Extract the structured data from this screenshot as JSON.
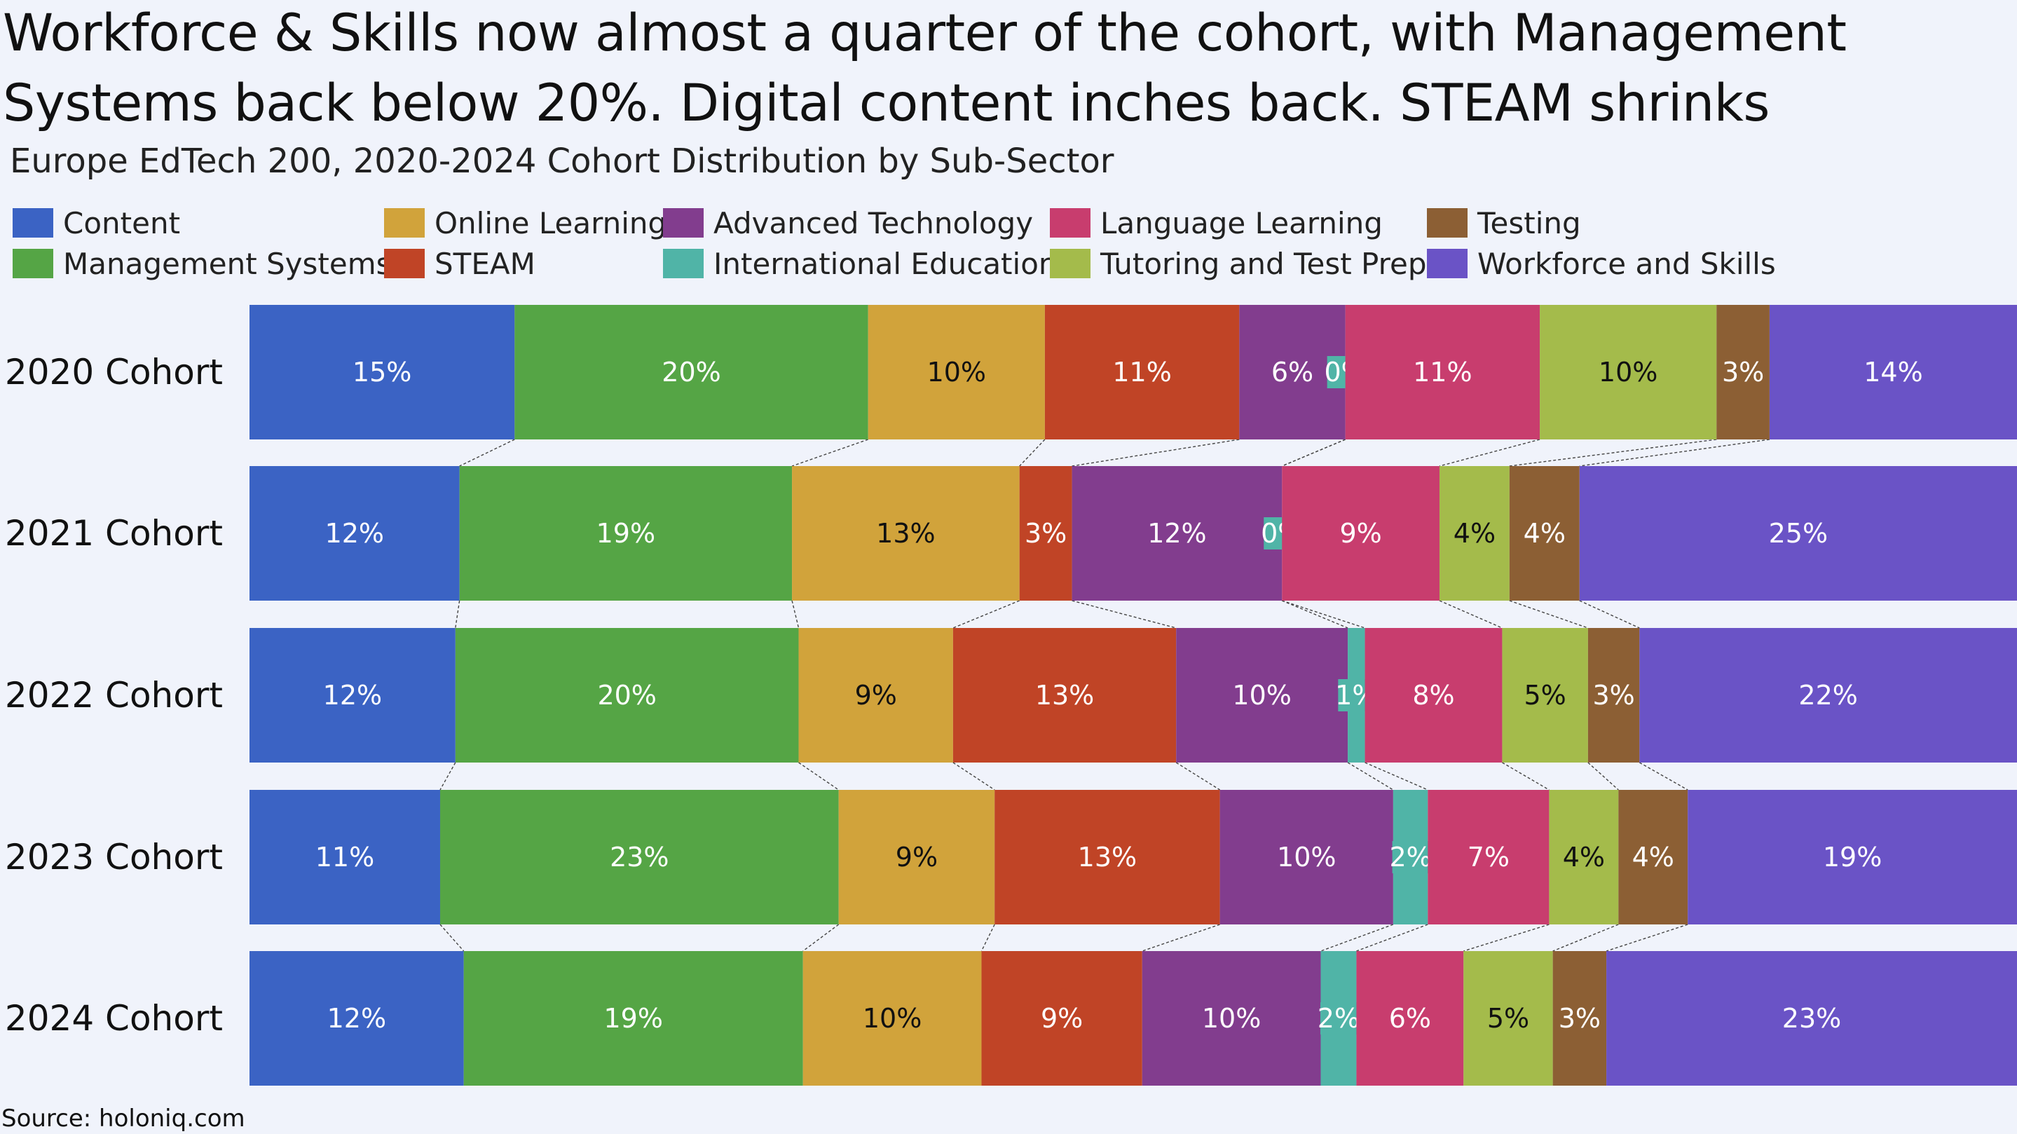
{
  "title": "Workforce & Skills now almost a quarter of the cohort, with Management Systems back below 20%. Digital content inches back. STEAM shrinks",
  "subtitle": "Europe EdTech 200, 2020-2024 Cohort Distribution by Sub-Sector",
  "source": "Source: holoniq.com",
  "chart_data": {
    "type": "bar",
    "orientation": "horizontal",
    "stacked": true,
    "normalized": true,
    "unit": "%",
    "categories": [
      "2020 Cohort",
      "2021 Cohort",
      "2022 Cohort",
      "2023 Cohort",
      "2024 Cohort"
    ],
    "legend_position": "top",
    "series": [
      {
        "name": "Content",
        "color": "#3b63c4",
        "label_color": "#ffffff",
        "values": [
          15,
          12,
          12,
          11,
          12
        ]
      },
      {
        "name": "Management Systems",
        "color": "#55a545",
        "label_color": "#ffffff",
        "values": [
          20,
          19,
          20,
          23,
          19
        ]
      },
      {
        "name": "Online Learning",
        "color": "#d1a33b",
        "label_color": "#111111",
        "values": [
          10,
          13,
          9,
          9,
          10
        ]
      },
      {
        "name": "STEAM",
        "color": "#c04426",
        "label_color": "#ffffff",
        "values": [
          11,
          3,
          13,
          13,
          9
        ]
      },
      {
        "name": "Advanced Technology",
        "color": "#823d8e",
        "label_color": "#ffffff",
        "values": [
          6,
          12,
          10,
          10,
          10
        ]
      },
      {
        "name": "International Education",
        "color": "#50b4a7",
        "label_color": "#ffffff",
        "values": [
          0,
          0,
          1,
          2,
          2
        ]
      },
      {
        "name": "Language Learning",
        "color": "#c83d6e",
        "label_color": "#ffffff",
        "values": [
          11,
          9,
          8,
          7,
          6
        ]
      },
      {
        "name": "Tutoring and Test Prep",
        "color": "#a4bb4b",
        "label_color": "#111111",
        "values": [
          10,
          4,
          5,
          4,
          5
        ]
      },
      {
        "name": "Testing",
        "color": "#8c5f34",
        "label_color": "#ffffff",
        "values": [
          3,
          4,
          3,
          4,
          3
        ]
      },
      {
        "name": "Workforce and Skills",
        "color": "#6a53c6",
        "label_color": "#ffffff",
        "values": [
          14,
          25,
          22,
          19,
          23
        ]
      }
    ]
  }
}
